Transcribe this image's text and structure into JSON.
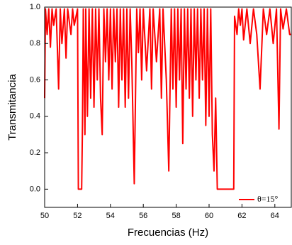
{
  "chart_data": {
    "type": "line",
    "xlabel": "Frecuencias (Hz)",
    "ylabel": "Transmitancia",
    "xlim": [
      50,
      65
    ],
    "ylim": [
      -0.1,
      1.0
    ],
    "xticks": [
      50,
      52,
      54,
      56,
      58,
      60,
      62,
      64
    ],
    "yticks": [
      {
        "value": 0,
        "label": "0.0"
      },
      0.2,
      0.4,
      0.6,
      0.8,
      {
        "value": 1,
        "label": "1.0"
      }
    ],
    "legend": "lower right",
    "x": [
      50,
      50.05,
      50.15,
      50.25,
      50.35,
      50.45,
      50.55,
      50.7,
      50.85,
      50.95,
      51.05,
      51.2,
      51.3,
      51.4,
      51.6,
      51.7,
      51.8,
      52.0,
      52.05,
      52.25,
      52.3,
      52.35,
      52.45,
      52.5,
      52.6,
      52.7,
      52.8,
      52.9,
      53.0,
      53.1,
      53.2,
      53.3,
      53.4,
      53.5,
      53.6,
      53.7,
      53.8,
      53.9,
      54.0,
      54.1,
      54.2,
      54.3,
      54.4,
      54.5,
      54.6,
      54.7,
      54.8,
      54.9,
      55.0,
      55.1,
      55.2,
      55.3,
      55.45,
      55.6,
      55.7,
      55.8,
      55.9,
      56.0,
      56.2,
      56.4,
      56.5,
      56.6,
      56.8,
      57.0,
      57.1,
      57.2,
      57.4,
      57.55,
      57.7,
      57.8,
      57.9,
      58.0,
      58.1,
      58.2,
      58.3,
      58.4,
      58.5,
      58.6,
      58.7,
      58.8,
      58.9,
      59.0,
      59.1,
      59.2,
      59.3,
      59.4,
      59.5,
      59.6,
      59.7,
      59.8,
      59.9,
      60.0,
      60.1,
      60.2,
      60.3,
      60.4,
      60.5,
      61.5,
      61.55,
      61.7,
      61.8,
      61.9,
      62.0,
      62.1,
      62.3,
      62.5,
      62.7,
      62.9,
      63.1,
      63.3,
      63.5,
      63.7,
      63.9,
      64.1,
      64.25,
      64.35,
      64.5,
      64.7,
      64.9,
      65
    ],
    "series": [
      {
        "name": "θ=15°",
        "color": "#ff0000",
        "values": [
          0.5,
          0.99,
          0.85,
          0.99,
          0.78,
          0.99,
          0.9,
          0.99,
          0.55,
          0.99,
          0.8,
          0.99,
          0.72,
          0.99,
          0.85,
          0.99,
          0.9,
          0.99,
          0.0,
          0.0,
          0.35,
          0.99,
          0.3,
          0.99,
          0.4,
          0.99,
          0.5,
          0.99,
          0.45,
          0.99,
          0.6,
          0.99,
          0.5,
          0.3,
          0.99,
          0.7,
          0.99,
          0.6,
          0.99,
          0.55,
          0.99,
          0.7,
          0.99,
          0.45,
          0.99,
          0.6,
          0.99,
          0.45,
          0.99,
          0.5,
          0.99,
          0.7,
          0.03,
          0.99,
          0.75,
          0.99,
          0.6,
          0.99,
          0.65,
          0.99,
          0.55,
          0.99,
          0.7,
          0.99,
          0.5,
          0.99,
          0.6,
          0.1,
          0.99,
          0.55,
          0.99,
          0.45,
          0.99,
          0.6,
          0.99,
          0.25,
          0.99,
          0.55,
          0.99,
          0.5,
          0.99,
          0.4,
          0.99,
          0.6,
          0.99,
          0.5,
          0.99,
          0.6,
          0.99,
          0.35,
          0.99,
          0.4,
          0.99,
          0.3,
          0.1,
          0.5,
          0.0,
          0.0,
          0.95,
          0.85,
          0.99,
          0.9,
          0.99,
          0.82,
          0.99,
          0.8,
          0.99,
          0.85,
          0.55,
          0.99,
          0.85,
          0.99,
          0.8,
          0.99,
          0.33,
          0.99,
          0.88,
          0.99,
          0.85,
          0.85
        ]
      }
    ]
  }
}
